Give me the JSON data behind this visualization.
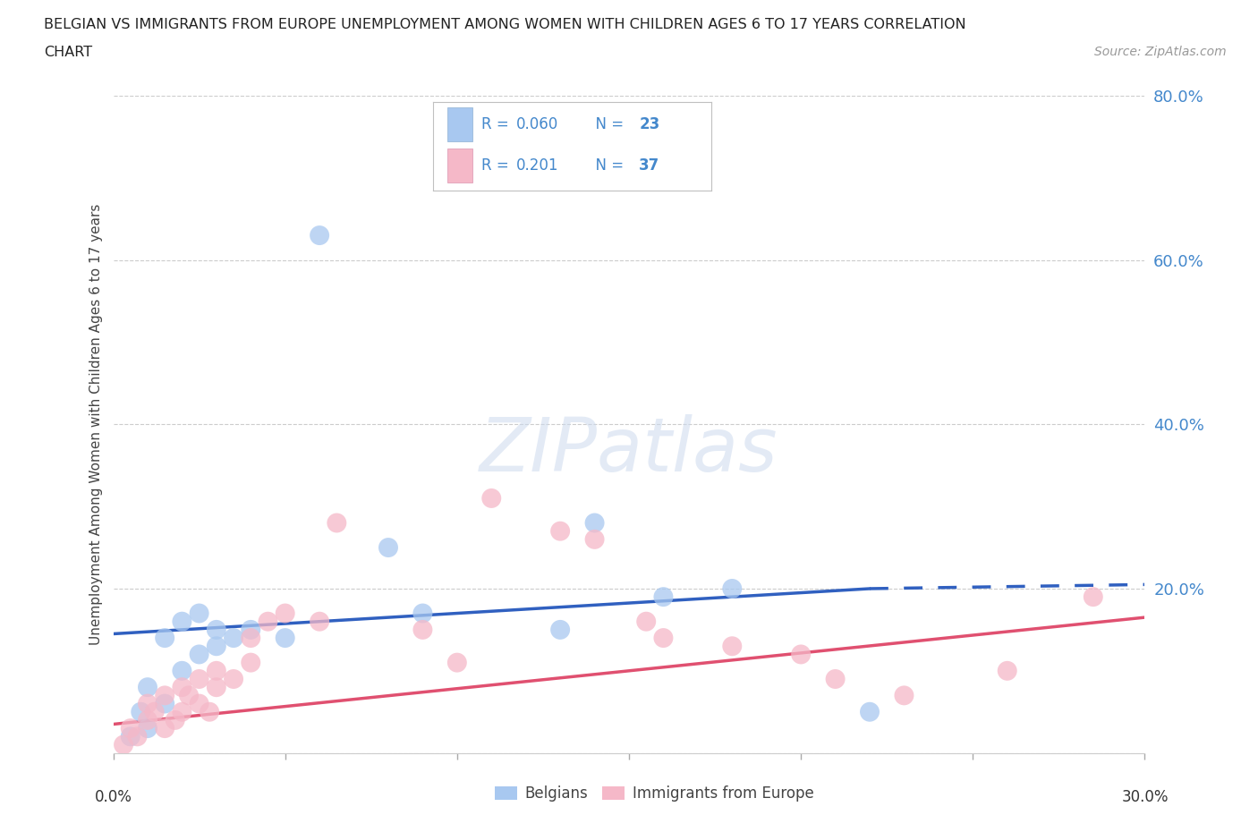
{
  "title_line1": "BELGIAN VS IMMIGRANTS FROM EUROPE UNEMPLOYMENT AMONG WOMEN WITH CHILDREN AGES 6 TO 17 YEARS CORRELATION",
  "title_line2": "CHART",
  "source": "Source: ZipAtlas.com",
  "ylabel": "Unemployment Among Women with Children Ages 6 to 17 years",
  "legend_label1": "Belgians",
  "legend_label2": "Immigrants from Europe",
  "R1": "0.060",
  "N1": "23",
  "R2": "0.201",
  "N2": "37",
  "color_belgian": "#a8c8f0",
  "color_immigrant": "#f5b8c8",
  "color_belgian_line": "#3060c0",
  "color_immigrant_line": "#e05070",
  "color_tick_labels": "#4488cc",
  "xlim": [
    0.0,
    0.3
  ],
  "ylim": [
    0.0,
    0.8
  ],
  "yticks": [
    0.0,
    0.2,
    0.4,
    0.6,
    0.8
  ],
  "ytick_labels": [
    "",
    "20.0%",
    "40.0%",
    "60.0%",
    "80.0%"
  ],
  "belgian_x": [
    0.005,
    0.008,
    0.01,
    0.01,
    0.015,
    0.015,
    0.02,
    0.02,
    0.025,
    0.025,
    0.03,
    0.03,
    0.035,
    0.04,
    0.05,
    0.06,
    0.08,
    0.09,
    0.13,
    0.14,
    0.16,
    0.18,
    0.22
  ],
  "belgian_y": [
    0.02,
    0.05,
    0.03,
    0.08,
    0.06,
    0.14,
    0.1,
    0.16,
    0.12,
    0.17,
    0.13,
    0.15,
    0.14,
    0.15,
    0.14,
    0.63,
    0.25,
    0.17,
    0.15,
    0.28,
    0.19,
    0.2,
    0.05
  ],
  "immigrant_x": [
    0.003,
    0.005,
    0.007,
    0.01,
    0.01,
    0.012,
    0.015,
    0.015,
    0.018,
    0.02,
    0.02,
    0.022,
    0.025,
    0.025,
    0.028,
    0.03,
    0.03,
    0.035,
    0.04,
    0.04,
    0.045,
    0.05,
    0.06,
    0.065,
    0.09,
    0.1,
    0.11,
    0.13,
    0.14,
    0.155,
    0.16,
    0.18,
    0.2,
    0.21,
    0.23,
    0.26,
    0.285
  ],
  "immigrant_y": [
    0.01,
    0.03,
    0.02,
    0.04,
    0.06,
    0.05,
    0.03,
    0.07,
    0.04,
    0.05,
    0.08,
    0.07,
    0.06,
    0.09,
    0.05,
    0.08,
    0.1,
    0.09,
    0.11,
    0.14,
    0.16,
    0.17,
    0.16,
    0.28,
    0.15,
    0.11,
    0.31,
    0.27,
    0.26,
    0.16,
    0.14,
    0.13,
    0.12,
    0.09,
    0.07,
    0.1,
    0.19
  ],
  "blue_line_solid_end": 0.22,
  "blue_line_y_start": 0.145,
  "blue_line_y_end_solid": 0.2,
  "blue_line_y_end_dash": 0.205,
  "pink_line_y_start": 0.035,
  "pink_line_y_end": 0.165,
  "watermark_text": "ZIPatlas",
  "watermark_fontsize": 60
}
